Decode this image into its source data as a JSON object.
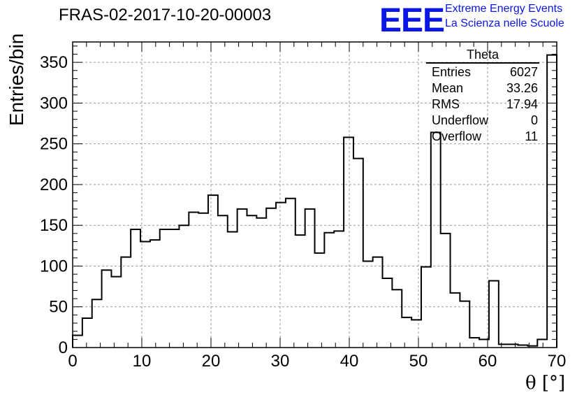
{
  "header": {
    "run_title": "FRAS-02-2017-10-20-00003",
    "logo_text": "EEE",
    "org_line1": "Extreme Energy Events",
    "org_line2": "La Scienza nelle Scuole"
  },
  "stats_box": {
    "title": "Theta",
    "rows": [
      {
        "label": "Entries",
        "value": "6027"
      },
      {
        "label": "Mean",
        "value": "33.26"
      },
      {
        "label": "RMS",
        "value": "17.94"
      },
      {
        "label": "Underflow",
        "value": "0"
      },
      {
        "label": "Overflow",
        "value": "11"
      }
    ]
  },
  "colors": {
    "logo": "#0a16e6",
    "line": "#000000",
    "grid": "#9a9a9a"
  },
  "chart_data": {
    "type": "bar",
    "style": "step-histogram",
    "title": "FRAS-02-2017-10-20-00003",
    "xlabel": "θ [°]",
    "ylabel": "Entries/bin",
    "xlim": [
      0,
      70
    ],
    "ylim": [
      0,
      375
    ],
    "grid": true,
    "legend": "top-right",
    "bin_width": 1.4,
    "x_ticks": [
      0,
      10,
      20,
      30,
      40,
      50,
      60,
      70
    ],
    "y_ticks": [
      0,
      50,
      100,
      150,
      200,
      250,
      300,
      350
    ],
    "values": [
      15,
      36,
      59,
      95,
      87,
      111,
      145,
      130,
      132,
      145,
      145,
      150,
      166,
      165,
      187,
      162,
      142,
      170,
      162,
      159,
      171,
      178,
      183,
      138,
      170,
      116,
      141,
      143,
      258,
      232,
      106,
      111,
      85,
      71,
      37,
      34,
      99,
      264,
      140,
      67,
      57,
      12,
      10,
      82,
      4,
      4,
      3,
      2,
      10,
      359
    ]
  }
}
